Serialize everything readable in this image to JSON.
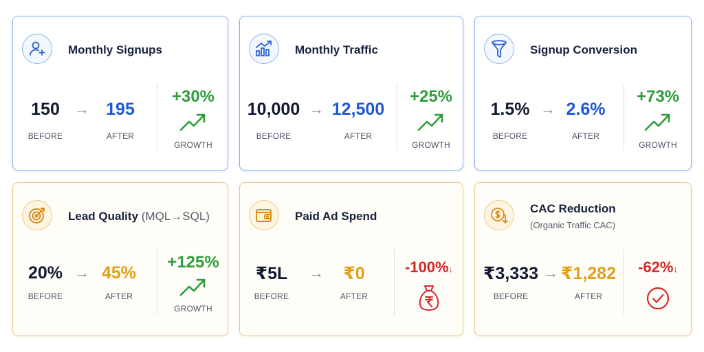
{
  "cards": [
    {
      "title": "Monthly Signups",
      "icon": "add-user-icon",
      "before": "150",
      "after": "195",
      "before_label": "BEFORE",
      "after_label": "AFTER",
      "change": "+30%",
      "change_label": "GROWTH"
    },
    {
      "title": "Monthly Traffic",
      "icon": "bar-chart-trend-icon",
      "before": "10,000",
      "after": "12,500",
      "before_label": "BEFORE",
      "after_label": "AFTER",
      "change": "+25%",
      "change_label": "GROWTH"
    },
    {
      "title": "Signup Conversion",
      "icon": "funnel-icon",
      "before": "1.5%",
      "after": "2.6%",
      "before_label": "BEFORE",
      "after_label": "AFTER",
      "change": "+73%",
      "change_label": "GROWTH"
    },
    {
      "title": "Lead Quality",
      "title_suffix": "(MQL→SQL)",
      "icon": "target-icon",
      "before": "20%",
      "after": "45%",
      "before_label": "BEFORE",
      "after_label": "AFTER",
      "change": "+125%",
      "change_label": "GROWTH"
    },
    {
      "title": "Paid Ad Spend",
      "icon": "wallet-icon",
      "before": "₹5L",
      "after": "₹0",
      "before_label": "BEFORE",
      "after_label": "AFTER",
      "change": "-100%",
      "change_arrow": "↓",
      "change_icon": "money-bag-icon"
    },
    {
      "title": "CAC Reduction",
      "subtitle": "(Organic Traffic CAC)",
      "icon": "coin-down-icon",
      "before": "₹3,333",
      "after": "₹1,282",
      "before_label": "BEFORE",
      "after_label": "AFTER",
      "change": "-62%",
      "change_arrow": "↓",
      "change_icon": "check-circle-icon"
    }
  ],
  "colors": {
    "blue_accent": "#1f57d6",
    "gold_accent": "#e0a017",
    "growth_green": "#2e9c3a",
    "decline_red": "#d5262b"
  }
}
